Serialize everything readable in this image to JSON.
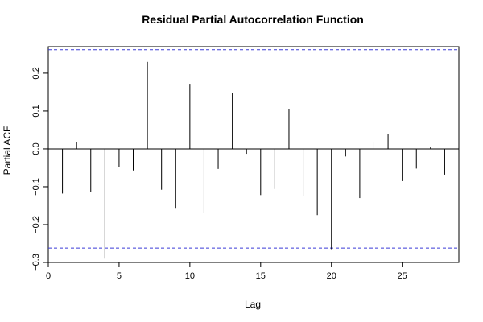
{
  "chart_data": {
    "type": "bar",
    "title": "Residual Partial Autocorrelation Function",
    "xlabel": "Lag",
    "ylabel": "Partial ACF",
    "xlim": [
      0,
      29
    ],
    "ylim": [
      -0.3,
      0.27
    ],
    "x_ticks": [
      0,
      5,
      10,
      15,
      20,
      25
    ],
    "y_ticks": [
      -0.3,
      -0.2,
      -0.1,
      0.0,
      0.1,
      0.2
    ],
    "y_tick_labels": [
      "−0.3",
      "−0.2",
      "−0.1",
      "0.0",
      "0.1",
      "0.2"
    ],
    "ci_upper": 0.262,
    "ci_lower": -0.262,
    "grid": false,
    "x": [
      1,
      2,
      3,
      4,
      5,
      6,
      7,
      8,
      9,
      10,
      11,
      12,
      13,
      14,
      15,
      16,
      17,
      18,
      19,
      20,
      21,
      22,
      23,
      24,
      25,
      26,
      27,
      28
    ],
    "values": [
      -0.118,
      0.018,
      -0.113,
      -0.29,
      -0.048,
      -0.057,
      0.23,
      -0.108,
      -0.158,
      0.172,
      -0.17,
      -0.053,
      0.148,
      -0.013,
      -0.122,
      -0.106,
      0.105,
      -0.124,
      -0.175,
      -0.265,
      -0.02,
      -0.13,
      0.018,
      0.04,
      -0.085,
      -0.052,
      0.005,
      -0.068
    ]
  },
  "colors": {
    "bars": "#000000",
    "confidence_band": "#3b3bd6"
  }
}
